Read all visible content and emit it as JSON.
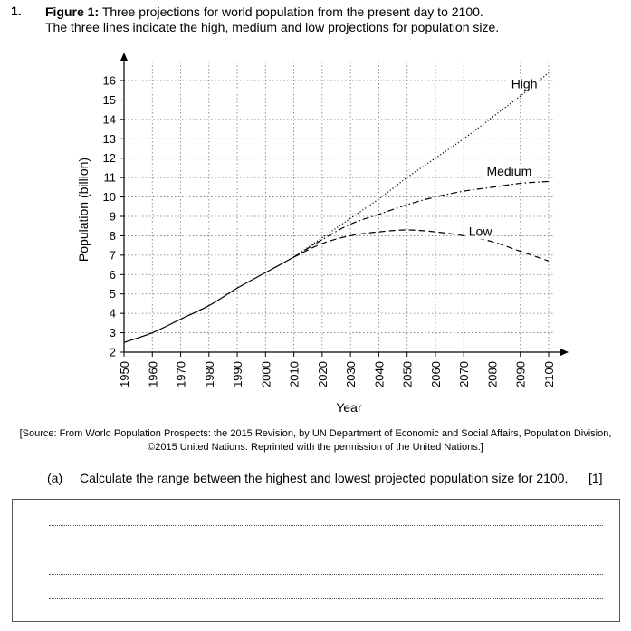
{
  "question": {
    "number": "1.",
    "figure_label": "Figure 1:",
    "figure_title": "Three projections for world population from the present day to 2100.",
    "figure_subtitle": "The three lines indicate the high, medium and low projections for population size.",
    "source": "[Source: From World Population Prospects: the 2015 Revision, by UN Department of Economic and Social Affairs, Population Division, ©2015 United Nations. Reprinted with the permission of the United Nations.]",
    "part_label": "(a)",
    "part_text": "Calculate the range between the highest and lowest projected population size for 2100.",
    "marks": "[1]",
    "answer_lines": 4
  },
  "chart_data": {
    "type": "line",
    "title": "",
    "xlabel": "Year",
    "ylabel": "Population (billion)",
    "xlim": [
      1950,
      2100
    ],
    "ylim": [
      2,
      16.5
    ],
    "x_ticks": [
      "1950",
      "1960",
      "1970",
      "1980",
      "1990",
      "2000",
      "2010",
      "2020",
      "2030",
      "2040",
      "2050",
      "2060",
      "2070",
      "2080",
      "2090",
      "2100"
    ],
    "y_ticks": [
      "2",
      "3",
      "4",
      "5",
      "6",
      "7",
      "8",
      "9",
      "10",
      "11",
      "12",
      "13",
      "14",
      "15",
      "16"
    ],
    "grid": true,
    "historical": {
      "style": "solid",
      "x": [
        1950,
        1960,
        1970,
        1980,
        1990,
        2000,
        2010
      ],
      "y": [
        2.5,
        3.0,
        3.7,
        4.4,
        5.3,
        6.1,
        6.9
      ]
    },
    "series": [
      {
        "name": "High",
        "style": "dotted",
        "x": [
          2010,
          2020,
          2030,
          2040,
          2050,
          2060,
          2070,
          2080,
          2090,
          2100
        ],
        "y": [
          6.9,
          7.9,
          8.9,
          9.9,
          11.0,
          12.0,
          13.0,
          14.1,
          15.2,
          16.4
        ]
      },
      {
        "name": "Medium",
        "style": "dash-dot",
        "x": [
          2010,
          2020,
          2030,
          2040,
          2050,
          2060,
          2070,
          2080,
          2090,
          2100
        ],
        "y": [
          6.9,
          7.8,
          8.6,
          9.1,
          9.6,
          10.0,
          10.3,
          10.5,
          10.7,
          10.8
        ]
      },
      {
        "name": "Low",
        "style": "dashed",
        "x": [
          2010,
          2020,
          2030,
          2040,
          2050,
          2060,
          2070,
          2080,
          2090,
          2100
        ],
        "y": [
          6.9,
          7.6,
          8.0,
          8.2,
          8.3,
          8.2,
          8.0,
          7.7,
          7.2,
          6.7
        ]
      }
    ]
  }
}
